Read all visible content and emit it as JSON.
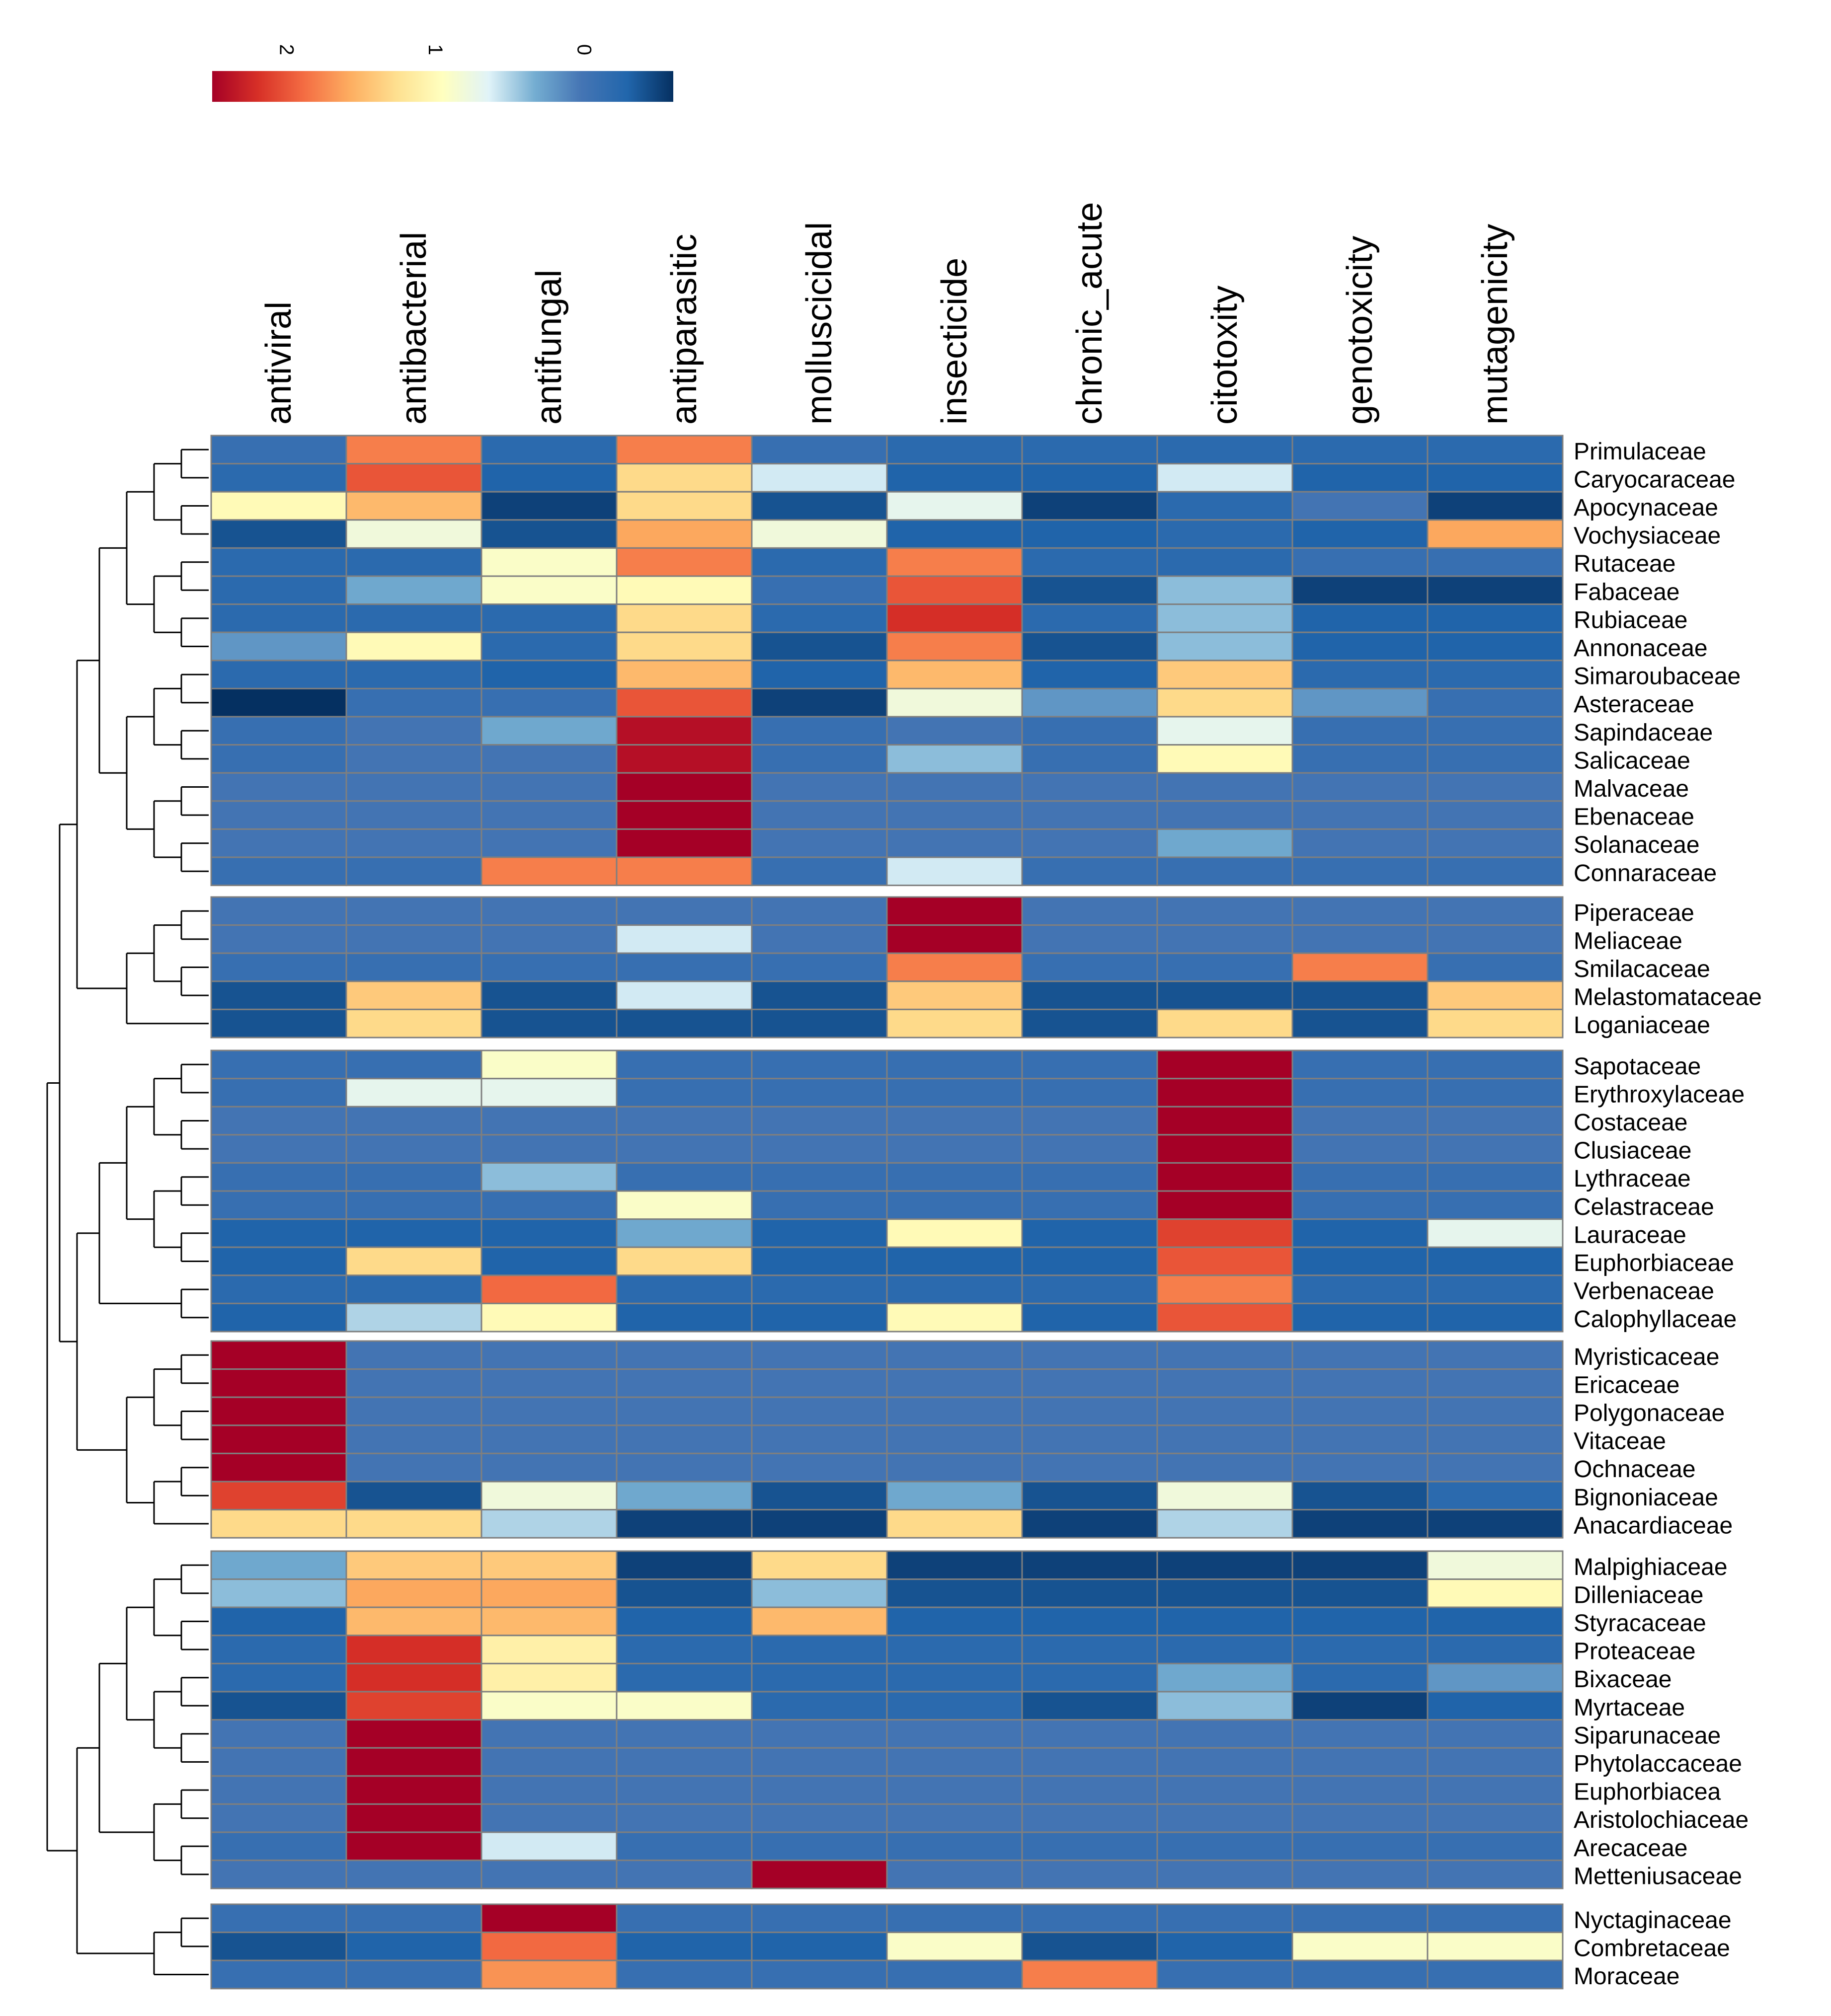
{
  "chart_data": {
    "type": "heatmap",
    "title": "",
    "xlabel": "",
    "ylabel": "",
    "color_scale": {
      "ticks": [
        "2",
        "1",
        "0"
      ],
      "min": -0.6,
      "max": 2.5,
      "stops": [
        "#a50026",
        "#d73027",
        "#f46d43",
        "#fdae61",
        "#fee090",
        "#ffffbf",
        "#e0f3f8",
        "#74add1",
        "#4575b4",
        "#2166ac",
        "#053061"
      ]
    },
    "columns": [
      "antiviral",
      "antibacterial",
      "antifungal",
      "antiparasitic",
      "molluscicidal",
      "insecticide",
      "chronic_acute",
      "citotoxity",
      "genotoxicity",
      "mutagenicity"
    ],
    "row_groups": [
      {
        "rows": [
          {
            "label": "Primulaceae",
            "values": [
              -0.1,
              1.8,
              -0.2,
              1.8,
              -0.1,
              -0.2,
              -0.2,
              -0.2,
              -0.2,
              -0.2
            ]
          },
          {
            "label": "Caryocaraceae",
            "values": [
              -0.2,
              2.0,
              -0.3,
              1.3,
              0.6,
              -0.3,
              -0.3,
              0.6,
              -0.3,
              -0.3
            ]
          },
          {
            "label": "Apocynaceae",
            "values": [
              1.0,
              1.5,
              -0.5,
              1.3,
              -0.4,
              0.7,
              -0.5,
              -0.2,
              0.0,
              -0.5
            ]
          },
          {
            "label": "Vochysiaceae",
            "values": [
              -0.4,
              0.8,
              -0.4,
              1.6,
              0.8,
              -0.3,
              -0.3,
              -0.2,
              -0.3,
              1.6
            ]
          },
          {
            "label": "Rutaceae",
            "values": [
              -0.2,
              -0.2,
              0.9,
              1.8,
              -0.2,
              1.8,
              -0.2,
              -0.2,
              -0.1,
              -0.1
            ]
          },
          {
            "label": "Fabaceae",
            "values": [
              -0.2,
              0.3,
              0.9,
              1.0,
              -0.1,
              2.0,
              -0.4,
              0.4,
              -0.5,
              -0.5
            ]
          },
          {
            "label": "Rubiaceae",
            "values": [
              -0.2,
              -0.2,
              -0.2,
              1.3,
              -0.2,
              2.2,
              -0.2,
              0.4,
              -0.3,
              -0.3
            ]
          },
          {
            "label": "Annonaceae",
            "values": [
              0.2,
              1.0,
              -0.2,
              1.3,
              -0.4,
              1.8,
              -0.4,
              0.4,
              -0.3,
              -0.3
            ]
          },
          {
            "label": "Simaroubaceae",
            "values": [
              -0.2,
              -0.2,
              -0.3,
              1.5,
              -0.3,
              1.5,
              -0.3,
              1.4,
              -0.2,
              -0.2
            ]
          },
          {
            "label": "Asteraceae",
            "values": [
              -0.6,
              -0.1,
              -0.1,
              2.0,
              -0.5,
              0.8,
              0.2,
              1.3,
              0.2,
              -0.1
            ]
          },
          {
            "label": "Sapindaceae",
            "values": [
              -0.1,
              0.0,
              0.3,
              2.4,
              -0.1,
              0.0,
              -0.1,
              0.7,
              -0.1,
              -0.1
            ]
          },
          {
            "label": "Salicaceae",
            "values": [
              -0.1,
              0.0,
              0.0,
              2.4,
              -0.1,
              0.4,
              -0.1,
              1.0,
              -0.1,
              -0.1
            ]
          },
          {
            "label": "Malvaceae",
            "values": [
              0.0,
              0.0,
              0.0,
              2.5,
              0.0,
              0.0,
              0.0,
              0.0,
              0.0,
              0.0
            ]
          },
          {
            "label": "Ebenaceae",
            "values": [
              0.0,
              0.0,
              0.0,
              2.5,
              0.0,
              0.0,
              0.0,
              0.0,
              0.0,
              0.0
            ]
          },
          {
            "label": "Solanaceae",
            "values": [
              0.0,
              0.0,
              0.0,
              2.5,
              0.0,
              0.0,
              0.0,
              0.3,
              0.0,
              0.0
            ]
          },
          {
            "label": "Connaraceae",
            "values": [
              -0.1,
              -0.1,
              1.8,
              1.8,
              -0.1,
              0.6,
              -0.1,
              -0.1,
              -0.1,
              -0.1
            ]
          }
        ]
      },
      {
        "rows": [
          {
            "label": "Piperaceae",
            "values": [
              0.0,
              0.0,
              0.0,
              0.0,
              0.0,
              2.5,
              0.0,
              0.0,
              0.0,
              0.0
            ]
          },
          {
            "label": "Meliaceae",
            "values": [
              0.0,
              0.0,
              0.0,
              0.6,
              0.0,
              2.5,
              0.0,
              0.0,
              0.0,
              0.0
            ]
          },
          {
            "label": "Smilacaceae",
            "values": [
              -0.1,
              -0.1,
              -0.1,
              -0.1,
              -0.1,
              1.8,
              -0.1,
              -0.1,
              1.8,
              -0.1
            ]
          },
          {
            "label": "Melastomataceae",
            "values": [
              -0.4,
              1.4,
              -0.4,
              0.6,
              -0.4,
              1.4,
              -0.4,
              -0.4,
              -0.4,
              1.4
            ]
          },
          {
            "label": "Loganiaceae",
            "values": [
              -0.4,
              1.3,
              -0.4,
              -0.4,
              -0.4,
              1.3,
              -0.4,
              1.3,
              -0.4,
              1.3
            ]
          }
        ]
      },
      {
        "rows": [
          {
            "label": "Sapotaceae",
            "values": [
              -0.1,
              -0.1,
              0.9,
              -0.1,
              -0.1,
              -0.1,
              -0.1,
              2.5,
              -0.1,
              -0.1
            ]
          },
          {
            "label": "Erythroxylaceae",
            "values": [
              -0.1,
              0.7,
              0.7,
              -0.1,
              -0.1,
              -0.1,
              -0.1,
              2.5,
              -0.1,
              -0.1
            ]
          },
          {
            "label": "Costaceae",
            "values": [
              0.0,
              0.0,
              0.0,
              0.0,
              0.0,
              0.0,
              0.0,
              2.5,
              0.0,
              0.0
            ]
          },
          {
            "label": "Clusiaceae",
            "values": [
              0.0,
              0.0,
              0.0,
              0.0,
              0.0,
              0.0,
              0.0,
              2.5,
              0.0,
              0.0
            ]
          },
          {
            "label": "Lythraceae",
            "values": [
              -0.1,
              -0.1,
              0.4,
              -0.1,
              -0.1,
              -0.1,
              -0.1,
              2.5,
              -0.1,
              -0.1
            ]
          },
          {
            "label": "Celastraceae",
            "values": [
              -0.1,
              -0.1,
              -0.1,
              0.9,
              -0.1,
              -0.1,
              -0.1,
              2.5,
              -0.1,
              -0.1
            ]
          },
          {
            "label": "Lauraceae",
            "values": [
              -0.3,
              -0.3,
              -0.3,
              0.3,
              -0.3,
              1.0,
              -0.3,
              2.1,
              -0.3,
              0.7
            ]
          },
          {
            "label": "Euphorbiaceae",
            "values": [
              -0.3,
              1.3,
              -0.3,
              1.3,
              -0.3,
              -0.3,
              -0.3,
              2.0,
              -0.3,
              -0.3
            ]
          },
          {
            "label": "Verbenaceae",
            "values": [
              -0.2,
              -0.2,
              1.9,
              -0.2,
              -0.2,
              -0.2,
              -0.2,
              1.8,
              -0.2,
              -0.2
            ]
          },
          {
            "label": "Calophyllaceae",
            "values": [
              -0.3,
              0.5,
              1.0,
              -0.3,
              -0.3,
              1.0,
              -0.3,
              2.0,
              -0.3,
              -0.3
            ]
          }
        ]
      },
      {
        "rows": [
          {
            "label": "Myristicaceae",
            "values": [
              2.5,
              0.0,
              0.0,
              0.0,
              0.0,
              0.0,
              0.0,
              0.0,
              0.0,
              0.0
            ]
          },
          {
            "label": "Ericaceae",
            "values": [
              2.5,
              0.0,
              0.0,
              0.0,
              0.0,
              0.0,
              0.0,
              0.0,
              0.0,
              0.0
            ]
          },
          {
            "label": "Polygonaceae",
            "values": [
              2.5,
              0.0,
              0.0,
              0.0,
              0.0,
              0.0,
              0.0,
              0.0,
              0.0,
              0.0
            ]
          },
          {
            "label": "Vitaceae",
            "values": [
              2.5,
              0.0,
              0.0,
              0.0,
              0.0,
              0.0,
              0.0,
              0.0,
              0.0,
              0.0
            ]
          },
          {
            "label": "Ochnaceae",
            "values": [
              2.5,
              0.0,
              0.0,
              0.0,
              0.0,
              0.0,
              0.0,
              0.0,
              0.0,
              0.0
            ]
          },
          {
            "label": "Bignoniaceae",
            "values": [
              2.1,
              -0.4,
              0.8,
              0.3,
              -0.4,
              0.3,
              -0.4,
              0.8,
              -0.4,
              -0.2
            ]
          },
          {
            "label": "Anacardiaceae",
            "values": [
              1.3,
              1.3,
              0.5,
              -0.5,
              -0.5,
              1.3,
              -0.5,
              0.5,
              -0.5,
              -0.5
            ]
          }
        ]
      },
      {
        "rows": [
          {
            "label": "Malpighiaceae",
            "values": [
              0.3,
              1.4,
              1.4,
              -0.5,
              1.3,
              -0.5,
              -0.5,
              -0.5,
              -0.5,
              0.8
            ]
          },
          {
            "label": "Dilleniaceae",
            "values": [
              0.4,
              1.6,
              1.6,
              -0.4,
              0.4,
              -0.4,
              -0.4,
              -0.4,
              -0.4,
              1.0
            ]
          },
          {
            "label": "Styracaceae",
            "values": [
              -0.3,
              1.5,
              1.5,
              -0.3,
              1.5,
              -0.3,
              -0.3,
              -0.3,
              -0.3,
              -0.3
            ]
          },
          {
            "label": "Proteaceae",
            "values": [
              -0.2,
              2.2,
              1.1,
              -0.2,
              -0.2,
              -0.2,
              -0.2,
              -0.2,
              -0.2,
              -0.2
            ]
          },
          {
            "label": "Bixaceae",
            "values": [
              -0.2,
              2.2,
              1.1,
              -0.2,
              -0.2,
              -0.2,
              -0.2,
              0.3,
              -0.2,
              0.2
            ]
          },
          {
            "label": "Myrtaceae",
            "values": [
              -0.4,
              2.1,
              0.9,
              0.9,
              -0.2,
              -0.2,
              -0.4,
              0.4,
              -0.5,
              -0.3
            ]
          },
          {
            "label": "Siparunaceae",
            "values": [
              0.0,
              2.5,
              0.0,
              0.0,
              0.0,
              0.0,
              0.0,
              0.0,
              0.0,
              0.0
            ]
          },
          {
            "label": "Phytolaccaceae",
            "values": [
              0.0,
              2.5,
              0.0,
              0.0,
              0.0,
              0.0,
              0.0,
              0.0,
              0.0,
              0.0
            ]
          },
          {
            "label": "Euphorbiacea",
            "values": [
              0.0,
              2.5,
              0.0,
              0.0,
              0.0,
              0.0,
              0.0,
              0.0,
              0.0,
              0.0
            ]
          },
          {
            "label": "Aristolochiaceae",
            "values": [
              0.0,
              2.5,
              0.0,
              0.0,
              0.0,
              0.0,
              0.0,
              0.0,
              0.0,
              0.0
            ]
          },
          {
            "label": "Arecaceae",
            "values": [
              -0.1,
              2.5,
              0.6,
              -0.1,
              -0.1,
              -0.1,
              -0.1,
              -0.1,
              -0.1,
              -0.1
            ]
          },
          {
            "label": "Metteniusaceae",
            "values": [
              0.0,
              0.0,
              0.0,
              0.0,
              2.5,
              0.0,
              0.0,
              0.0,
              0.0,
              0.0
            ]
          }
        ]
      },
      {
        "rows": [
          {
            "label": "Nyctaginaceae",
            "values": [
              -0.1,
              -0.1,
              2.5,
              -0.1,
              -0.1,
              -0.1,
              -0.1,
              -0.1,
              -0.1,
              -0.1
            ]
          },
          {
            "label": "Combretaceae",
            "values": [
              -0.4,
              -0.3,
              1.9,
              -0.3,
              -0.3,
              0.9,
              -0.4,
              -0.3,
              0.9,
              0.9
            ]
          },
          {
            "label": "Moraceae",
            "values": [
              -0.1,
              -0.1,
              1.7,
              -0.1,
              -0.1,
              -0.1,
              1.8,
              -0.1,
              -0.1,
              -0.1
            ]
          }
        ]
      }
    ]
  }
}
